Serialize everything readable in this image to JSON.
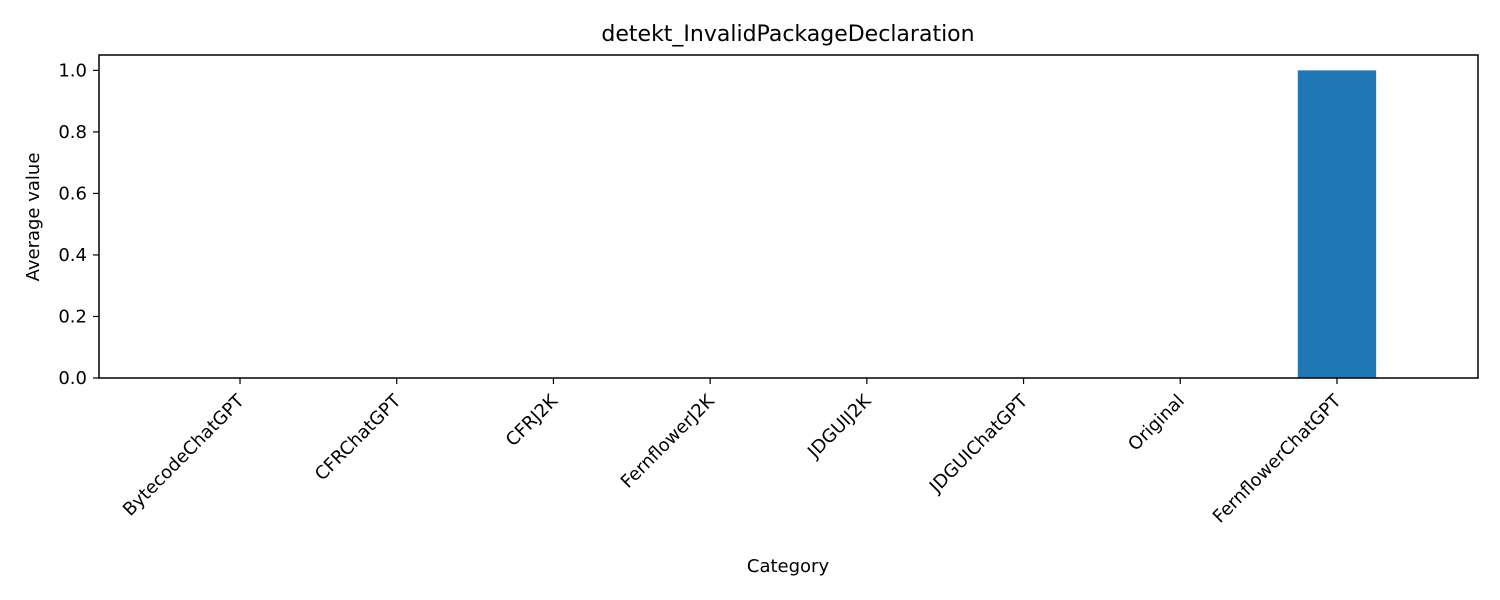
{
  "chart_data": {
    "type": "bar",
    "title": "detekt_InvalidPackageDeclaration",
    "xlabel": "Category",
    "ylabel": "Average value",
    "categories": [
      "BytecodeChatGPT",
      "CFRChatGPT",
      "CFRJ2K",
      "FernflowerJ2K",
      "JDGUIJ2K",
      "JDGUIChatGPT",
      "Original",
      "FernflowerChatGPT"
    ],
    "values": [
      0,
      0,
      0,
      0,
      0,
      0,
      0,
      1.0
    ],
    "ylim": [
      0,
      1.05
    ],
    "yticks": [
      "0.0",
      "0.2",
      "0.4",
      "0.6",
      "0.8",
      "1.0"
    ],
    "grid": false,
    "bar_color": "#1f77b4"
  }
}
